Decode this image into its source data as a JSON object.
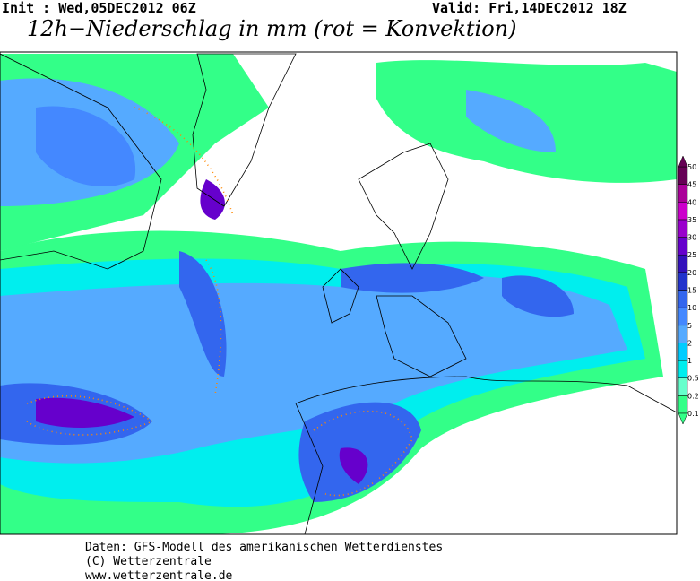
{
  "header": {
    "init": "Init : Wed,05DEC2012 06Z",
    "valid": "Valid: Fri,14DEC2012 18Z",
    "title": "12h−Niederschlag in mm (rot = Konvektion)"
  },
  "colorbar": {
    "levels": [
      0.1,
      0.2,
      0.5,
      1,
      2,
      5,
      10,
      15,
      20,
      25,
      30,
      35,
      40,
      45,
      50
    ],
    "colors": [
      "#33ff88",
      "#66ffcc",
      "#00eeee",
      "#00ccff",
      "#55aaff",
      "#4488ff",
      "#3366ee",
      "#2233cc",
      "#3311bb",
      "#6600cc",
      "#9900cc",
      "#cc00cc",
      "#aa0099",
      "#660055"
    ]
  },
  "footer": {
    "lines": [
      "Daten: GFS-Modell des amerikanischen Wetterdienstes",
      "(C) Wetterzentrale",
      "www.wetterzentrale.de"
    ]
  }
}
